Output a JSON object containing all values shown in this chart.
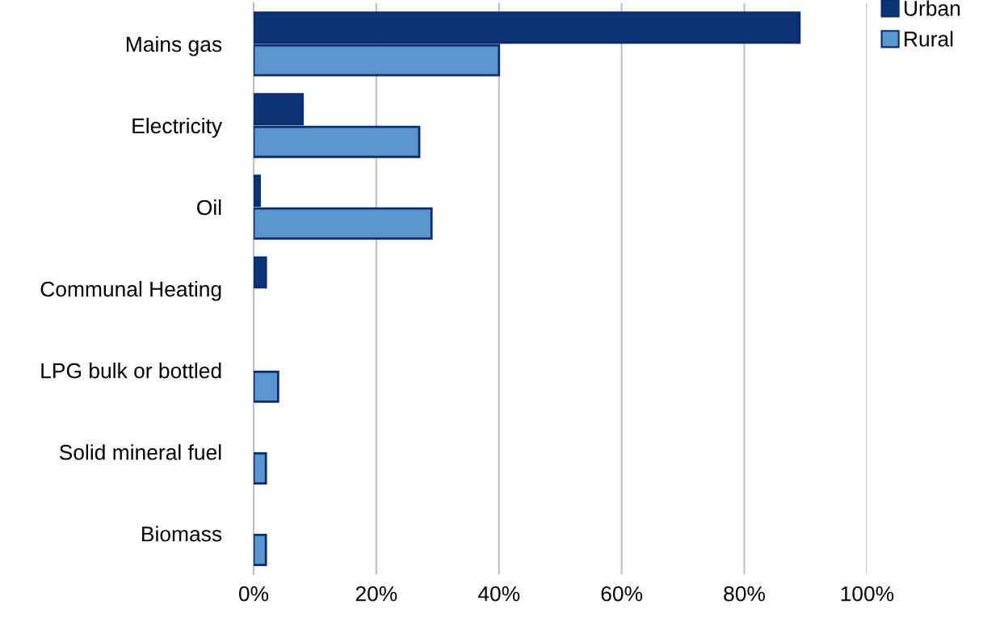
{
  "chart_data": {
    "type": "bar",
    "orientation": "horizontal",
    "categories": [
      "Mains gas",
      "Electricity",
      "Oil",
      "Communal Heating",
      "LPG bulk or bottled",
      "Solid mineral fuel",
      "Biomass"
    ],
    "series": [
      {
        "name": "Urban",
        "color": "#0b3375",
        "values": [
          89,
          8,
          1,
          2,
          null,
          null,
          null
        ]
      },
      {
        "name": "Rural",
        "color": "#5b96cf",
        "values": [
          40,
          27,
          29,
          null,
          4,
          2,
          2
        ]
      }
    ],
    "xlim": [
      0,
      100
    ],
    "xticks": [
      {
        "value": 0,
        "label": "0%"
      },
      {
        "value": 20,
        "label": "20%"
      },
      {
        "value": 40,
        "label": "40%"
      },
      {
        "value": 60,
        "label": "60%"
      },
      {
        "value": 80,
        "label": "80%"
      },
      {
        "value": 100,
        "label": "100%"
      }
    ],
    "grid": "x",
    "legend": "top right"
  }
}
